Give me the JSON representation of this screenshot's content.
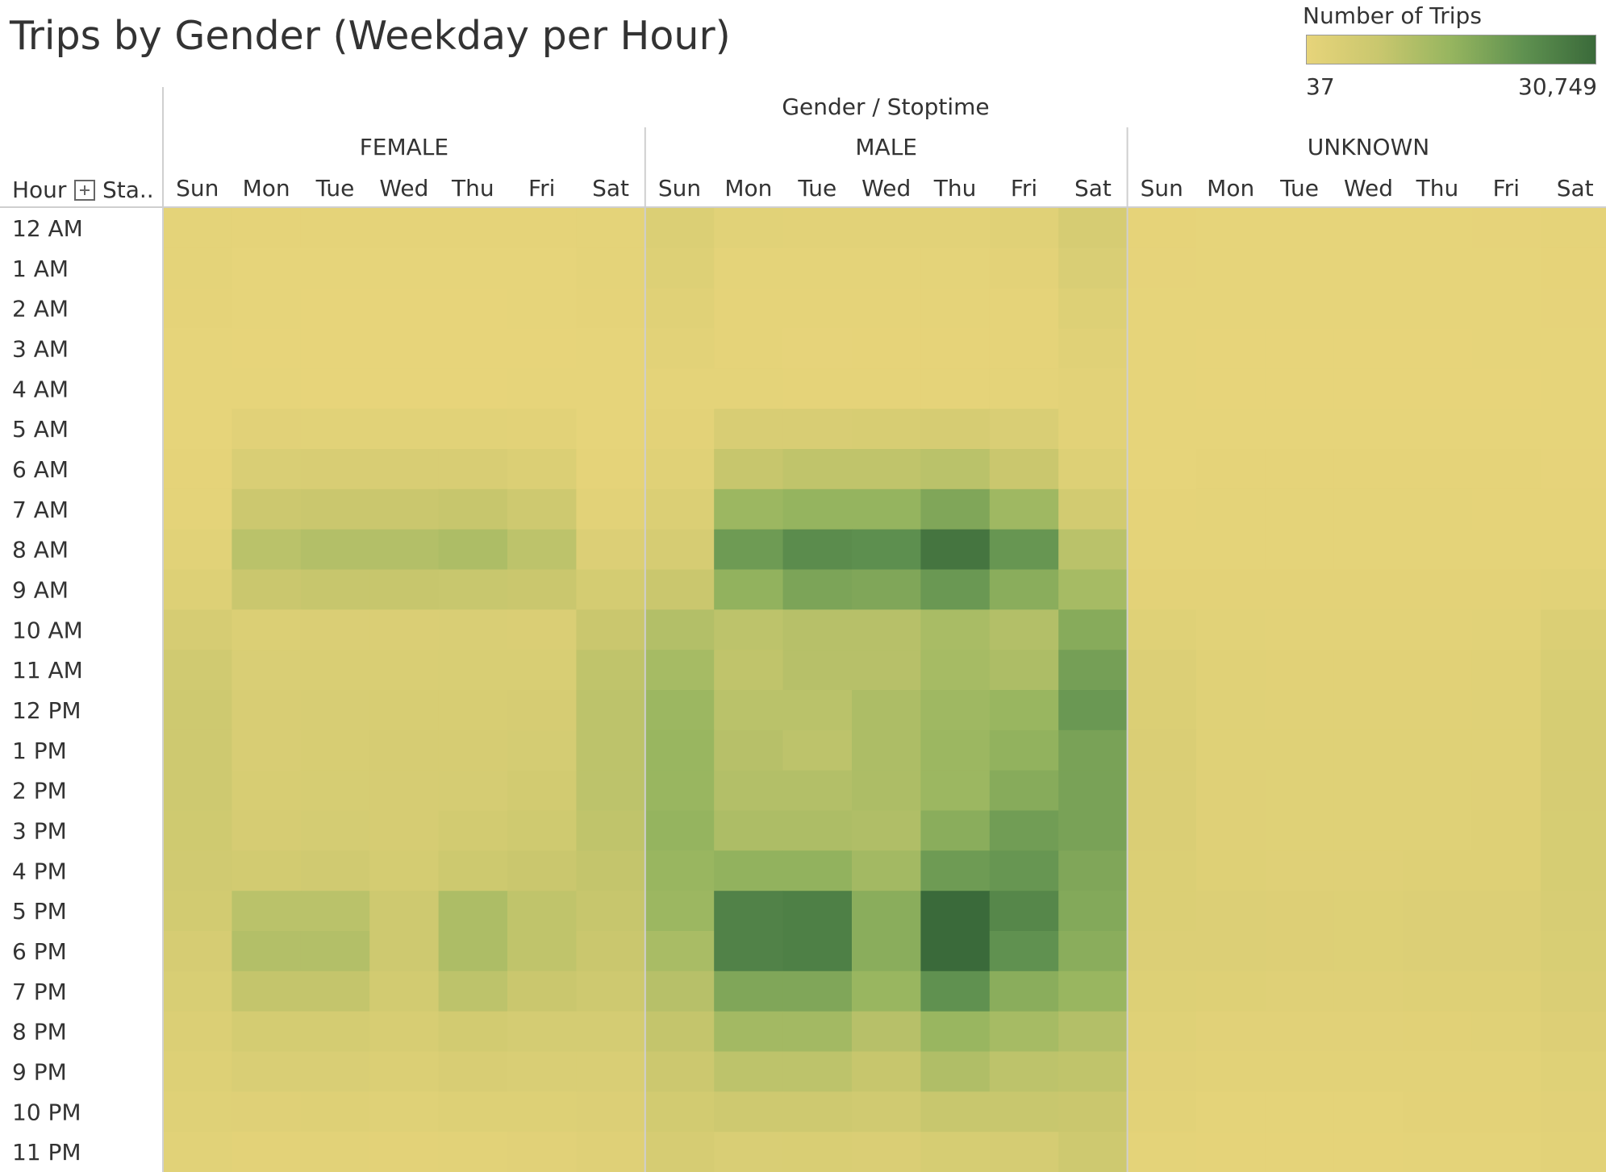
{
  "chart_data": {
    "type": "heatmap",
    "title": "Trips by Gender (Weekday per Hour)",
    "column_header": "Gender / Stoptime",
    "row_header": "Hour",
    "row_header_extra": "Sta..",
    "legend": {
      "title": "Number of Trips",
      "min_label": "37",
      "max_label": "30,749",
      "min": 37,
      "max": 30749,
      "color_low": "#e7d47a",
      "color_high": "#3a6a3a",
      "placement": "top-right"
    },
    "groups": [
      "FEMALE",
      "MALE",
      "UNKNOWN"
    ],
    "days": [
      "Sun",
      "Mon",
      "Tue",
      "Wed",
      "Thu",
      "Fri",
      "Sat"
    ],
    "hours": [
      "12 AM",
      "1 AM",
      "2 AM",
      "3 AM",
      "4 AM",
      "5 AM",
      "6 AM",
      "7 AM",
      "8 AM",
      "9 AM",
      "10 AM",
      "11 AM",
      "12 PM",
      "1 PM",
      "2 PM",
      "3 PM",
      "4 PM",
      "5 PM",
      "6 PM",
      "7 PM",
      "8 PM",
      "9 PM",
      "10 PM",
      "11 PM"
    ],
    "values": {
      "FEMALE": [
        [
          900,
          600,
          500,
          500,
          500,
          600,
          900
        ],
        [
          700,
          300,
          250,
          250,
          250,
          300,
          700
        ],
        [
          500,
          200,
          150,
          150,
          150,
          200,
          500
        ],
        [
          300,
          150,
          100,
          100,
          100,
          150,
          300
        ],
        [
          250,
          200,
          150,
          150,
          150,
          200,
          250
        ],
        [
          300,
          1600,
          1500,
          1500,
          1500,
          1300,
          300
        ],
        [
          500,
          3500,
          4000,
          4000,
          4000,
          3200,
          600
        ],
        [
          900,
          7000,
          7500,
          7500,
          8000,
          6500,
          1400
        ],
        [
          1500,
          10000,
          11000,
          11000,
          12000,
          9500,
          2800
        ],
        [
          2500,
          7500,
          8000,
          8000,
          7800,
          7500,
          5000
        ],
        [
          4500,
          3200,
          3400,
          3400,
          3500,
          3400,
          7500
        ],
        [
          6000,
          3500,
          3700,
          3700,
          3800,
          3800,
          9000
        ],
        [
          6500,
          3900,
          4100,
          4200,
          4200,
          4500,
          9500
        ],
        [
          6500,
          4000,
          4200,
          4500,
          4500,
          4800,
          9500
        ],
        [
          6400,
          4200,
          4300,
          4500,
          4700,
          5500,
          9500
        ],
        [
          6200,
          4500,
          4800,
          4500,
          5500,
          6200,
          9000
        ],
        [
          6000,
          5500,
          6000,
          5000,
          6800,
          7500,
          8500
        ],
        [
          5500,
          10000,
          10000,
          6500,
          12000,
          9000,
          8000
        ],
        [
          4500,
          11000,
          11000,
          6500,
          12000,
          9000,
          7500
        ],
        [
          3800,
          8500,
          8500,
          5500,
          9500,
          7500,
          6500
        ],
        [
          3000,
          5000,
          5000,
          4200,
          5500,
          4800,
          4800
        ],
        [
          2500,
          3500,
          3500,
          3000,
          4000,
          3500,
          3500
        ],
        [
          2000,
          2200,
          2300,
          2000,
          2600,
          2600,
          2800
        ],
        [
          1500,
          1100,
          1200,
          1100,
          1400,
          1600,
          2200
        ]
      ],
      "MALE": [
        [
          3000,
          1500,
          1200,
          1300,
          1300,
          1800,
          4500
        ],
        [
          2500,
          900,
          700,
          700,
          700,
          1000,
          3500
        ],
        [
          1800,
          600,
          500,
          500,
          500,
          600,
          2500
        ],
        [
          1200,
          450,
          350,
          400,
          400,
          500,
          1800
        ],
        [
          900,
          700,
          600,
          600,
          600,
          700,
          1400
        ],
        [
          1000,
          4000,
          4000,
          4200,
          4500,
          3500,
          1200
        ],
        [
          1800,
          8000,
          9000,
          9000,
          10000,
          7500,
          2500
        ],
        [
          3000,
          14500,
          15500,
          15500,
          18500,
          14000,
          5500
        ],
        [
          4500,
          21000,
          24000,
          23500,
          28500,
          22000,
          10000
        ],
        [
          7500,
          16000,
          19000,
          18500,
          21500,
          17000,
          13000
        ],
        [
          11000,
          9500,
          10500,
          10500,
          12500,
          11000,
          17500
        ],
        [
          13000,
          9000,
          10500,
          10500,
          13000,
          12000,
          20000
        ],
        [
          14500,
          10000,
          10000,
          12000,
          14000,
          15000,
          21500
        ],
        [
          15000,
          10500,
          9500,
          12000,
          14500,
          16000,
          19500
        ],
        [
          15000,
          11000,
          11000,
          12000,
          14500,
          17500,
          19500
        ],
        [
          15500,
          12000,
          12000,
          11500,
          17000,
          20500,
          19500
        ],
        [
          15000,
          16000,
          16000,
          13500,
          21000,
          22000,
          18500
        ],
        [
          14500,
          26000,
          26500,
          17000,
          30749,
          25000,
          18000
        ],
        [
          12500,
          26000,
          26500,
          17000,
          30749,
          23000,
          17000
        ],
        [
          10500,
          18500,
          18500,
          15000,
          23000,
          17000,
          15000
        ],
        [
          8500,
          13500,
          13500,
          10500,
          15000,
          13000,
          11000
        ],
        [
          7000,
          9500,
          9500,
          8000,
          11500,
          9500,
          9000
        ],
        [
          5500,
          6500,
          6500,
          5800,
          7800,
          7800,
          7500
        ],
        [
          4500,
          3500,
          3600,
          3400,
          4400,
          4700,
          6500
        ]
      ],
      "UNKNOWN": [
        [
          400,
          300,
          300,
          300,
          300,
          350,
          450
        ],
        [
          350,
          250,
          250,
          250,
          250,
          300,
          400
        ],
        [
          300,
          200,
          200,
          200,
          200,
          250,
          350
        ],
        [
          250,
          150,
          150,
          150,
          150,
          200,
          300
        ],
        [
          200,
          150,
          150,
          150,
          150,
          150,
          250
        ],
        [
          250,
          300,
          300,
          300,
          300,
          300,
          250
        ],
        [
          300,
          500,
          500,
          500,
          500,
          450,
          350
        ],
        [
          450,
          700,
          700,
          700,
          700,
          650,
          500
        ],
        [
          700,
          900,
          900,
          900,
          900,
          850,
          900
        ],
        [
          1000,
          1000,
          1000,
          1000,
          1000,
          1000,
          1500
        ],
        [
          2000,
          1500,
          1400,
          1400,
          1400,
          1500,
          3000
        ],
        [
          2800,
          1800,
          1700,
          1700,
          1700,
          1800,
          3800
        ],
        [
          3200,
          2000,
          1900,
          1900,
          1900,
          2000,
          4300
        ],
        [
          3400,
          2100,
          2000,
          2000,
          2000,
          2100,
          4500
        ],
        [
          3400,
          2200,
          2100,
          2100,
          2100,
          2200,
          4500
        ],
        [
          3300,
          2200,
          2100,
          2100,
          2100,
          2300,
          4400
        ],
        [
          3200,
          2300,
          2200,
          2200,
          2300,
          2400,
          4300
        ],
        [
          3100,
          2800,
          2700,
          2600,
          2800,
          2800,
          4100
        ],
        [
          2800,
          2800,
          2700,
          2600,
          2800,
          2800,
          3800
        ],
        [
          2500,
          2300,
          2200,
          2200,
          2300,
          2400,
          3300
        ],
        [
          2100,
          1600,
          1600,
          1600,
          1700,
          1800,
          2700
        ],
        [
          1600,
          1200,
          1200,
          1200,
          1300,
          1400,
          2100
        ],
        [
          1200,
          900,
          900,
          900,
          1000,
          1100,
          1600
        ],
        [
          900,
          600,
          600,
          600,
          700,
          800,
          1200
        ]
      ]
    }
  }
}
